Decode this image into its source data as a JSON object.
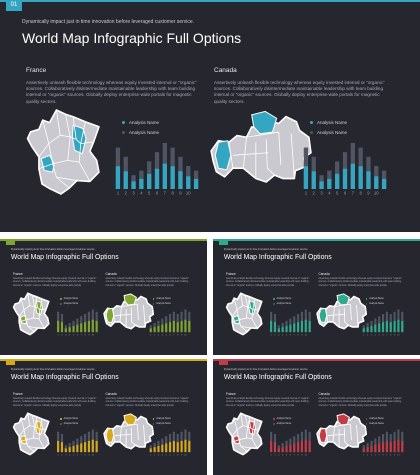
{
  "colors": {
    "background": "#26262f",
    "map_base": "#c9c9cf",
    "bar_base": "#4f5563",
    "teal": "#35a6c2",
    "green": "#7ea52f",
    "mint": "#2faa8c",
    "yellow": "#d6a91a",
    "red": "#c23b45"
  },
  "slides": [
    {
      "number": "01",
      "accent": "#35a6c2",
      "subtitle": "Dynamically impact just in time innovation before leveraged customer service.",
      "title": "World Map Infographic Full Options",
      "left": {
        "heading": "France",
        "text": "Assertively unleash flexible technology whereas equity invested internal or \"organic\" sources. Collaboratively disintermediate maintainable leadership with team building internal or \"organic\" sources. Globally deploy enterprise-wide portals for magnetic quality sectors.",
        "legend": [
          "Analysis Name",
          "Analysis Name"
        ],
        "bars": [
          9,
          7,
          3,
          4,
          6,
          8,
          10,
          9,
          7,
          5,
          4
        ],
        "ticks": [
          "1",
          "2",
          "3",
          "4",
          "5",
          "6",
          "7",
          "8",
          "9",
          "10"
        ]
      },
      "right": {
        "heading": "Canada",
        "text": "Assertively unleash flexible technology whereas equity invested internal or \"organic\" sources. Collaboratively disintermediate maintainable leadership with team building internal or \"organic\" sources. Globally deploy enterprise-wide portals for magnetic quality sectors.",
        "legend": [
          "Analysis Name",
          "Analysis Name"
        ],
        "bars": [
          9,
          7,
          3,
          4,
          6,
          8,
          10,
          9,
          7,
          5,
          4
        ],
        "ticks": [
          "1",
          "2",
          "3",
          "4",
          "5",
          "6",
          "7",
          "8",
          "9",
          "10"
        ]
      }
    },
    {
      "number": "",
      "accent": "#7ea52f",
      "subtitle": "Dynamically impact just in time innovation before leveraged customer service.",
      "title": "World Map Infographic Full Options",
      "left": {
        "heading": "France",
        "text": "Assertively unleash flexible technology whereas equity invested internal or \"organic\" sources. Collaboratively disintermediate maintainable leadership with team building internal or \"organic\" sources. Globally deploy enterprise-wide portals.",
        "legend": [
          "Analysis Name",
          "Analysis Name"
        ],
        "bars": [
          9,
          8,
          3,
          4,
          5,
          6,
          7,
          8,
          9,
          10,
          9
        ],
        "ticks": [
          "1",
          "2",
          "3",
          "4",
          "5",
          "6",
          "7",
          "8",
          "9",
          "10"
        ]
      },
      "right": {
        "heading": "Canada",
        "text": "Assertively unleash flexible technology whereas equity invested internal or \"organic\" sources. Collaboratively disintermediate maintainable leadership with team building internal or \"organic\" sources. Globally deploy enterprise-wide portals.",
        "legend": [
          "Analysis Name",
          "Analysis Name"
        ],
        "bars": [
          3,
          4,
          5,
          6,
          7,
          8,
          9,
          8,
          9,
          10,
          9
        ],
        "ticks": [
          "1",
          "2",
          "3",
          "4",
          "5",
          "6",
          "7",
          "8",
          "9",
          "10"
        ]
      }
    },
    {
      "number": "",
      "accent": "#2faa8c",
      "subtitle": "Dynamically impact just in time innovation before leveraged customer service.",
      "title": "World Map Infographic Full Options",
      "left": {
        "heading": "France",
        "text": "Assertively unleash flexible technology whereas equity invested internal or \"organic\" sources. Collaboratively disintermediate maintainable leadership with team building internal or \"organic\" sources. Globally deploy enterprise-wide portals.",
        "legend": [
          "Analysis Name",
          "Analysis Name"
        ],
        "bars": [
          9,
          8,
          3,
          4,
          5,
          6,
          7,
          8,
          9,
          10,
          9
        ],
        "ticks": [
          "1",
          "2",
          "3",
          "4",
          "5",
          "6",
          "7",
          "8",
          "9",
          "10"
        ]
      },
      "right": {
        "heading": "Canada",
        "text": "Assertively unleash flexible technology whereas equity invested internal or \"organic\" sources. Collaboratively disintermediate maintainable leadership with team building internal or \"organic\" sources. Globally deploy enterprise-wide portals.",
        "legend": [
          "Analysis Name",
          "Analysis Name"
        ],
        "bars": [
          3,
          4,
          5,
          6,
          7,
          8,
          9,
          8,
          9,
          10,
          9
        ],
        "ticks": [
          "1",
          "2",
          "3",
          "4",
          "5",
          "6",
          "7",
          "8",
          "9",
          "10"
        ]
      }
    },
    {
      "number": "",
      "accent": "#d6a91a",
      "subtitle": "Dynamically impact just in time innovation before leveraged customer service.",
      "title": "World Map Infographic Full Options",
      "left": {
        "heading": "France",
        "text": "Assertively unleash flexible technology whereas equity invested internal or \"organic\" sources. Collaboratively disintermediate maintainable leadership with team building internal or \"organic\" sources. Globally deploy enterprise-wide portals.",
        "legend": [
          "Analysis Name",
          "Analysis Name"
        ],
        "bars": [
          9,
          8,
          3,
          4,
          5,
          6,
          7,
          8,
          9,
          10,
          9
        ],
        "ticks": [
          "1",
          "2",
          "3",
          "4",
          "5",
          "6",
          "7",
          "8",
          "9",
          "10"
        ]
      },
      "right": {
        "heading": "Canada",
        "text": "Assertively unleash flexible technology whereas equity invested internal or \"organic\" sources. Collaboratively disintermediate maintainable leadership with team building internal or \"organic\" sources. Globally deploy enterprise-wide portals.",
        "legend": [
          "Analysis Name",
          "Analysis Name"
        ],
        "bars": [
          3,
          4,
          5,
          6,
          7,
          8,
          9,
          8,
          9,
          10,
          9
        ],
        "ticks": [
          "1",
          "2",
          "3",
          "4",
          "5",
          "6",
          "7",
          "8",
          "9",
          "10"
        ]
      }
    },
    {
      "number": "",
      "accent": "#c23b45",
      "subtitle": "Dynamically impact just in time innovation before leveraged customer service.",
      "title": "World Map Infographic Full Options",
      "left": {
        "heading": "France",
        "text": "Assertively unleash flexible technology whereas equity invested internal or \"organic\" sources. Collaboratively disintermediate maintainable leadership with team building internal or \"organic\" sources. Globally deploy enterprise-wide portals.",
        "legend": [
          "Analysis Name",
          "Analysis Name"
        ],
        "bars": [
          9,
          8,
          3,
          4,
          5,
          6,
          7,
          8,
          9,
          10,
          9
        ],
        "ticks": [
          "1",
          "2",
          "3",
          "4",
          "5",
          "6",
          "7",
          "8",
          "9",
          "10"
        ]
      },
      "right": {
        "heading": "Canada",
        "text": "Assertively unleash flexible technology whereas equity invested internal or \"organic\" sources. Collaboratively disintermediate maintainable leadership with team building internal or \"organic\" sources. Globally deploy enterprise-wide portals.",
        "legend": [
          "Analysis Name",
          "Analysis Name"
        ],
        "bars": [
          3,
          4,
          5,
          6,
          7,
          8,
          9,
          8,
          9,
          10,
          9
        ],
        "ticks": [
          "1",
          "2",
          "3",
          "4",
          "5",
          "6",
          "7",
          "8",
          "9",
          "10"
        ]
      }
    }
  ]
}
